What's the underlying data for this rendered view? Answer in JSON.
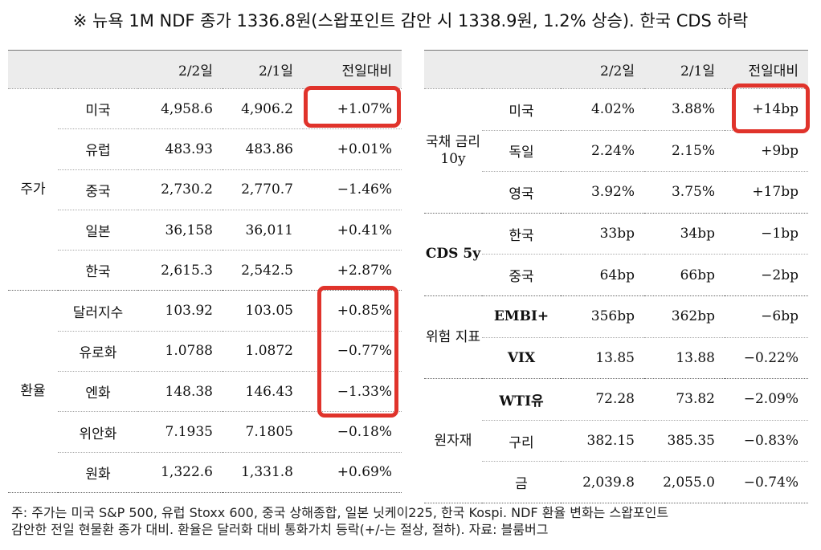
{
  "title": "※ 뉴욕 1M NDF 종가 1336.8원(스왑포인트 감안 시 1338.9원, 1.2% 상승). 한국 CDS 하락",
  "left_table": {
    "headers": [
      "2/2일",
      "2/1일",
      "전일대비"
    ],
    "groups": [
      {
        "category": "주가",
        "rows": [
          {
            "name": "미국",
            "d1": "4,958.6",
            "d0": "4,906.2",
            "chg": "+1.07%"
          },
          {
            "name": "유럽",
            "d1": "483.93",
            "d0": "483.86",
            "chg": "+0.01%"
          },
          {
            "name": "중국",
            "d1": "2,730.2",
            "d0": "2,770.7",
            "chg": "−1.46%"
          },
          {
            "name": "일본",
            "d1": "36,158",
            "d0": "36,011",
            "chg": "+0.41%"
          },
          {
            "name": "한국",
            "d1": "2,615.3",
            "d0": "2,542.5",
            "chg": "+2.87%"
          }
        ]
      },
      {
        "category": "환율",
        "rows": [
          {
            "name": "달러지수",
            "d1": "103.92",
            "d0": "103.05",
            "chg": "+0.85%"
          },
          {
            "name": "유로화",
            "d1": "1.0788",
            "d0": "1.0872",
            "chg": "−0.77%"
          },
          {
            "name": "엔화",
            "d1": "148.38",
            "d0": "146.43",
            "chg": "−1.33%"
          },
          {
            "name": "위안화",
            "d1": "7.1935",
            "d0": "7.1805",
            "chg": "−0.18%"
          },
          {
            "name": "원화",
            "d1": "1,322.6",
            "d0": "1,331.8",
            "chg": "+0.69%"
          }
        ]
      }
    ]
  },
  "right_table": {
    "headers": [
      "2/2일",
      "2/1일",
      "전일대비"
    ],
    "groups": [
      {
        "category": "국채 금리 10y",
        "rows": [
          {
            "name": "미국",
            "d1": "4.02%",
            "d0": "3.88%",
            "chg": "+14bp"
          },
          {
            "name": "독일",
            "d1": "2.24%",
            "d0": "2.15%",
            "chg": "+9bp"
          },
          {
            "name": "영국",
            "d1": "3.92%",
            "d0": "3.75%",
            "chg": "+17bp"
          }
        ]
      },
      {
        "category": "CDS 5y",
        "rows": [
          {
            "name": "한국",
            "d1": "33bp",
            "d0": "34bp",
            "chg": "−1bp"
          },
          {
            "name": "중국",
            "d1": "64bp",
            "d0": "66bp",
            "chg": "−2bp"
          }
        ]
      },
      {
        "category": "위험 지표",
        "rows": [
          {
            "name": "EMBI+",
            "d1": "356bp",
            "d0": "362bp",
            "chg": "−6bp"
          },
          {
            "name": "VIX",
            "d1": "13.85",
            "d0": "13.88",
            "chg": "−0.22%"
          }
        ]
      },
      {
        "category": "원자재",
        "rows": [
          {
            "name": "WTI유",
            "d1": "72.28",
            "d0": "73.82",
            "chg": "−2.09%"
          },
          {
            "name": "구리",
            "d1": "382.15",
            "d0": "385.35",
            "chg": "−0.83%"
          },
          {
            "name": "금",
            "d1": "2,039.8",
            "d0": "2,055.0",
            "chg": "−0.74%"
          }
        ]
      }
    ]
  },
  "footer": {
    "line1": "주: 주가는 미국 S&P 500, 유럽 Stoxx 600, 중국 상해종합, 일본 닛케이225, 한국 Kospi. NDF 환율 변화는 스왑포인트",
    "line2": "감안한 전일 현물환 종가 대비. 환율은 달러화 대비 통화가치 등락(+/-는 절상, 절하). 자료: 블룸버그"
  },
  "highlight_color": "#e0332b"
}
